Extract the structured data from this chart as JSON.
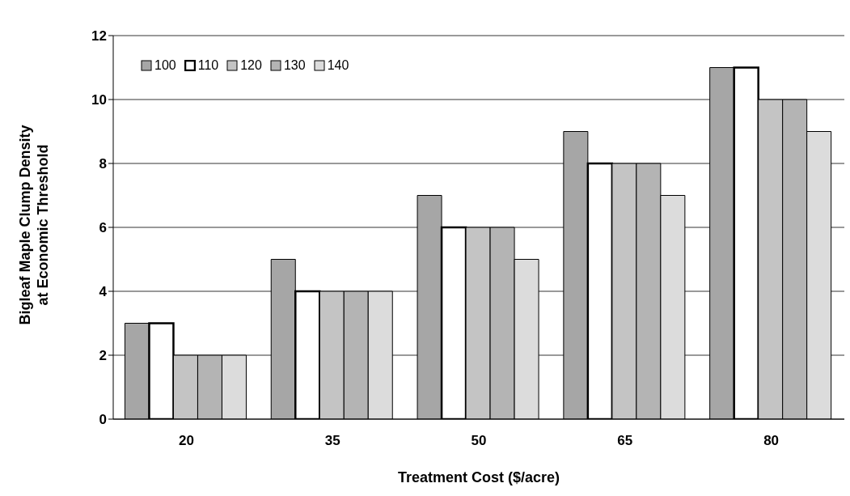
{
  "chart_data": {
    "type": "bar",
    "xlabel": "Treatment Cost ($/acre)",
    "ylabel": "Bigleaf Maple Clump Density\nat Economic Threshold",
    "categories": [
      "20",
      "35",
      "50",
      "65",
      "80"
    ],
    "series": [
      {
        "name": "100",
        "color": "#a6a6a6",
        "values": [
          3,
          5,
          7,
          9,
          11
        ]
      },
      {
        "name": "110",
        "color": "#ffffff",
        "values": [
          3,
          4,
          6,
          8,
          11
        ]
      },
      {
        "name": "120",
        "color": "#c4c4c4",
        "values": [
          2,
          4,
          6,
          8,
          10
        ]
      },
      {
        "name": "130",
        "color": "#b4b4b4",
        "values": [
          2,
          4,
          6,
          8,
          10
        ]
      },
      {
        "name": "140",
        "color": "#dcdcdc",
        "values": [
          2,
          4,
          5,
          7,
          9
        ]
      }
    ],
    "ylim": [
      0,
      12
    ],
    "yticks": [
      0,
      2,
      4,
      6,
      8,
      10,
      12
    ],
    "grid": "y",
    "legend": "top left"
  }
}
